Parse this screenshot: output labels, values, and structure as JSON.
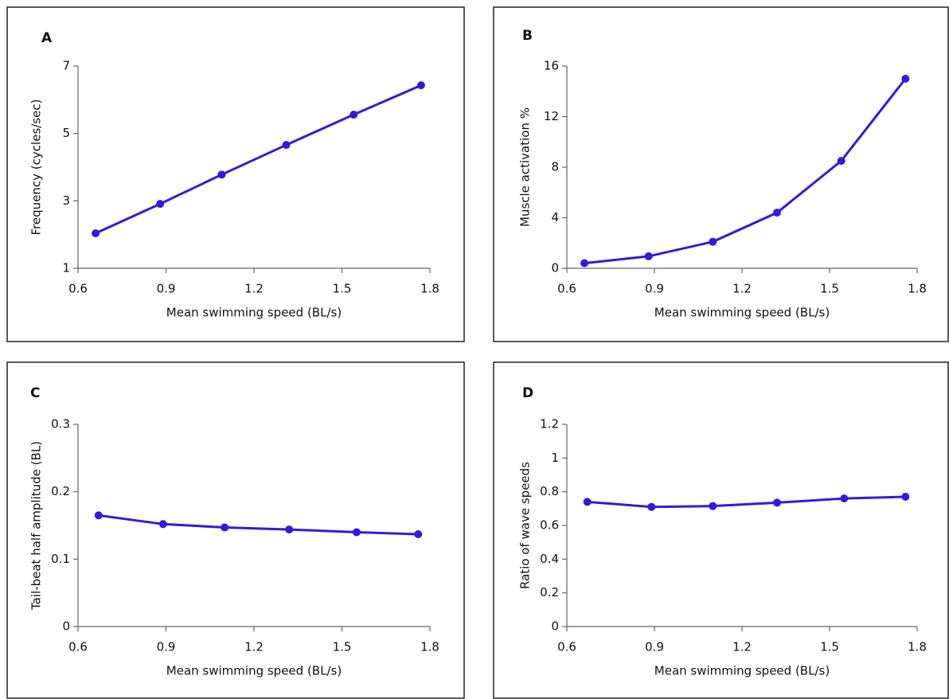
{
  "chart_data": [
    {
      "type": "line",
      "panel": "A",
      "ylabel": "Frequency (cycles/sec)",
      "xlabel": "Mean swimming speed (BL/s)",
      "x": [
        0.66,
        0.88,
        1.09,
        1.31,
        1.54,
        1.77
      ],
      "values": [
        2.04,
        2.91,
        3.78,
        4.66,
        5.56,
        6.43
      ],
      "color": "#3319e0",
      "xlim": [
        0.6,
        1.8
      ],
      "xticks": [
        0.6,
        0.9,
        1.2,
        1.5,
        1.8
      ],
      "ylim": [
        1,
        7
      ],
      "yticks": [
        1,
        3,
        5,
        7
      ]
    },
    {
      "type": "line",
      "panel": "B",
      "ylabel": "Muscle activation %",
      "xlabel": "Mean swimming speed (BL/s)",
      "x": [
        0.66,
        0.88,
        1.1,
        1.32,
        1.54,
        1.76
      ],
      "values": [
        0.4,
        0.95,
        2.1,
        4.4,
        8.5,
        15.0
      ],
      "color": "#3319e0",
      "xlim": [
        0.6,
        1.8
      ],
      "xticks": [
        0.6,
        0.9,
        1.2,
        1.5,
        1.8
      ],
      "ylim": [
        0,
        16
      ],
      "yticks": [
        0,
        4,
        8,
        12,
        16
      ]
    },
    {
      "type": "line",
      "panel": "C",
      "ylabel": "Tail-beat half amplitude (BL)",
      "xlabel": "Mean swimming speed (BL/s)",
      "x": [
        0.67,
        0.89,
        1.1,
        1.32,
        1.55,
        1.76
      ],
      "values": [
        0.165,
        0.152,
        0.147,
        0.144,
        0.14,
        0.137
      ],
      "color": "#3319e0",
      "xlim": [
        0.6,
        1.8
      ],
      "xticks": [
        0.6,
        0.9,
        1.2,
        1.5,
        1.8
      ],
      "ylim": [
        0,
        0.3
      ],
      "yticks": [
        0,
        0.1,
        0.2,
        0.3
      ]
    },
    {
      "type": "line",
      "panel": "D",
      "ylabel": "Ratio of wave speeds",
      "xlabel": "Mean swimming speed (BL/s)",
      "x": [
        0.67,
        0.89,
        1.1,
        1.32,
        1.55,
        1.76
      ],
      "values": [
        0.74,
        0.71,
        0.715,
        0.735,
        0.76,
        0.77
      ],
      "color": "#3319e0",
      "xlim": [
        0.6,
        1.8
      ],
      "xticks": [
        0.6,
        0.9,
        1.2,
        1.5,
        1.8
      ],
      "ylim": [
        0,
        1.2
      ],
      "yticks": [
        0,
        0.2,
        0.4,
        0.6,
        0.8,
        1,
        1.2
      ]
    }
  ]
}
